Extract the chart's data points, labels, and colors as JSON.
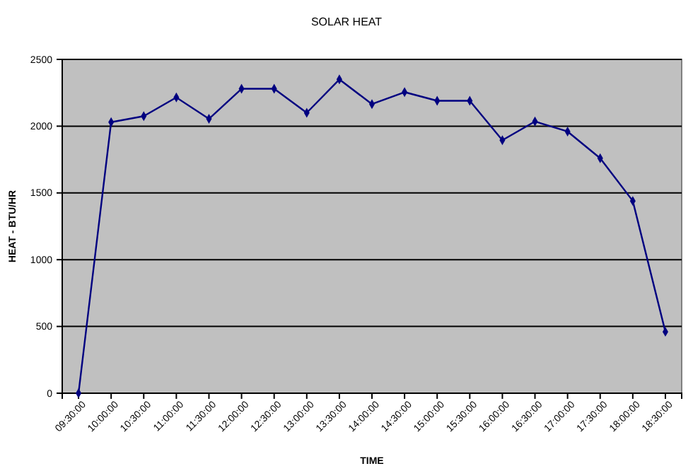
{
  "chart_data": {
    "type": "line",
    "title": "SOLAR HEAT",
    "xlabel": "TIME",
    "ylabel": "HEAT - BTU/HR",
    "categories": [
      "09:30:00",
      "10:00:00",
      "10:30:00",
      "11:00:00",
      "11:30:00",
      "12:00:00",
      "12:30:00",
      "13:00:00",
      "13:30:00",
      "14:00:00",
      "14:30:00",
      "15:00:00",
      "15:30:00",
      "16:00:00",
      "16:30:00",
      "17:00:00",
      "17:30:00",
      "18:00:00",
      "18:30:00"
    ],
    "series": [
      {
        "color": "#000080",
        "values": [
          0,
          2030,
          2075,
          2215,
          2055,
          2280,
          2280,
          2100,
          2350,
          2165,
          2255,
          2190,
          2190,
          1895,
          2035,
          1960,
          1760,
          1440,
          460
        ]
      }
    ],
    "ylim": [
      0,
      2500
    ],
    "yticks": [
      0,
      500,
      1000,
      1500,
      2000,
      2500
    ],
    "grid": "y",
    "marker": "diamond",
    "line_style": "solid"
  }
}
